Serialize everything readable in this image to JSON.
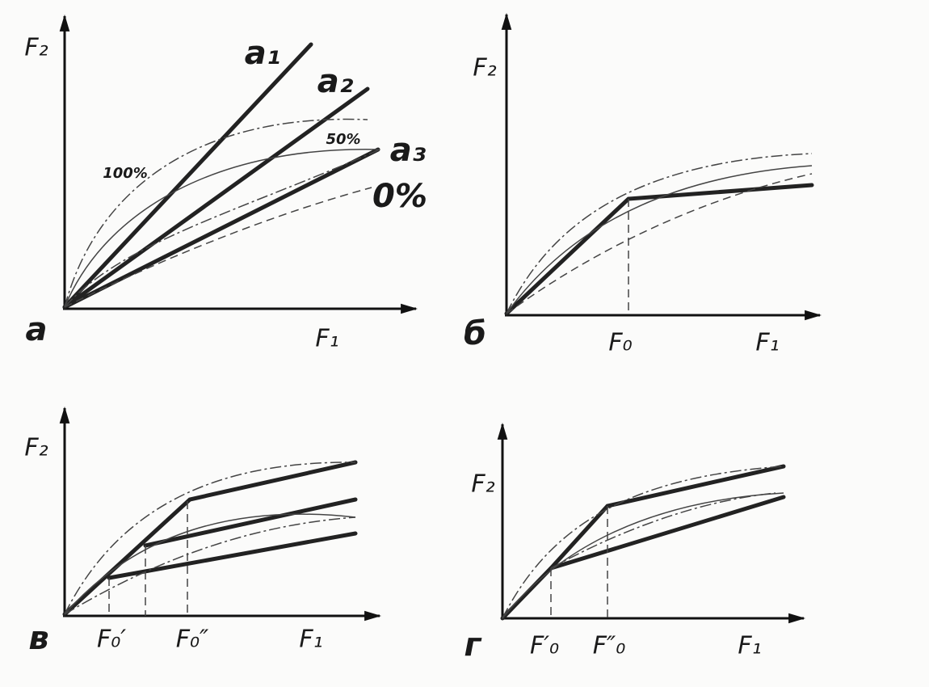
{
  "panels": [
    {
      "label": "а",
      "y_axis": "F₂",
      "x_axis": "F₁",
      "curve_labels": [
        "a₁",
        "a₂",
        "a₃"
      ],
      "percent_labels": [
        "100%",
        "50%",
        "0%"
      ]
    },
    {
      "label": "б",
      "y_axis": "F₂",
      "x_axis": "F₁",
      "markers": [
        "F₀"
      ]
    },
    {
      "label": "в",
      "y_axis": "F₂",
      "x_axis": "F₁",
      "markers": [
        "F₀′",
        "F₀″"
      ]
    },
    {
      "label": "г",
      "y_axis": "F₂",
      "x_axis": "F₁",
      "markers": [
        "F′₀",
        "F″₀"
      ]
    }
  ]
}
